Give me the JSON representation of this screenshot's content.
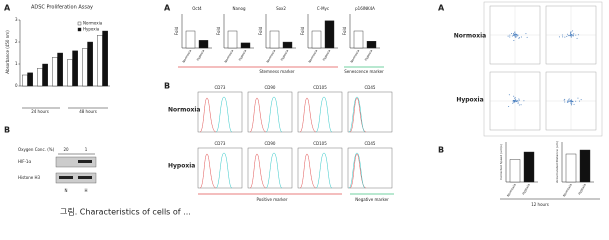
{
  "left_panel_a": {
    "label": "A",
    "title": "ADSC Proliferation Assay",
    "y_label": "Absorbance (450 nm)",
    "groups": [
      "24 hours",
      "48 hours"
    ],
    "ylim": [
      0,
      3
    ],
    "yticks": [
      0,
      1,
      2,
      3
    ],
    "series": [
      {
        "name": "Normoxia",
        "color": "#ffffff",
        "values": [
          0.5,
          0.8,
          1.3,
          1.2,
          1.7,
          2.3
        ]
      },
      {
        "name": "Hypoxia",
        "color": "#111111",
        "values": [
          0.6,
          1.0,
          1.5,
          1.6,
          2.0,
          2.5
        ]
      }
    ]
  },
  "left_panel_b": {
    "label": "B",
    "oxygen_label": "Oxygen Conc. (%)",
    "oxygen_levels": [
      "20",
      "1"
    ],
    "bands": [
      "HIF-1α",
      "Histone H3"
    ],
    "lanes": [
      "N",
      "H"
    ]
  },
  "middle_panel_a": {
    "label": "A",
    "y_label": "Fold",
    "conditions": [
      "Normoxia",
      "Hypoxia"
    ],
    "ylim": [
      0,
      2
    ],
    "markers": [
      {
        "name": "Oct4",
        "values": [
          1,
          0.45
        ]
      },
      {
        "name": "Nanog",
        "values": [
          1,
          0.3
        ]
      },
      {
        "name": "Sox2",
        "values": [
          1,
          0.35
        ]
      },
      {
        "name": "C-Myc",
        "values": [
          1,
          1.6
        ]
      },
      {
        "name": "p16INK4A",
        "values": [
          1,
          0.4
        ]
      }
    ],
    "groups": [
      "Stemness marker",
      "Senescence marker"
    ]
  },
  "middle_panel_b": {
    "label": "B",
    "rows": [
      "Normoxia",
      "Hypoxia"
    ],
    "markers": [
      "CD73",
      "CD90",
      "CD105",
      "CD45"
    ],
    "groups": [
      "Positive marker",
      "Negative marker"
    ]
  },
  "right_panel_a": {
    "label": "A",
    "rows": [
      "Normoxia",
      "Hypoxia"
    ]
  },
  "right_panel_b": {
    "label": "B",
    "conditions": [
      "Normoxia",
      "Hypoxia"
    ],
    "time": "12 hours",
    "charts": [
      {
        "y_label": "Corrected Speed (um/s)",
        "values": [
          0.45,
          0.6
        ],
        "ylim": [
          0,
          0.8
        ]
      },
      {
        "y_label": "Accumulated Distance (um)",
        "values": [
          35,
          40
        ],
        "ylim": [
          0,
          50
        ]
      }
    ]
  },
  "caption": "그림. Characteristics of cells of ..."
}
